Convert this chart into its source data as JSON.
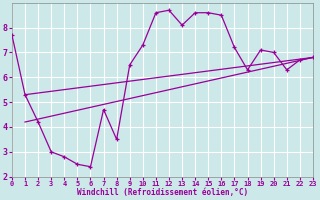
{
  "xlabel": "Windchill (Refroidissement éolien,°C)",
  "bg_color": "#cce8e8",
  "line_color": "#990099",
  "grid_color": "#ffffff",
  "xmin": 0,
  "xmax": 23,
  "ymin": 2,
  "ymax": 9,
  "curve1_x": [
    0,
    1,
    2,
    3,
    4,
    5,
    6,
    7,
    8,
    9,
    10,
    11,
    12,
    13,
    14,
    15,
    16,
    17,
    18,
    19,
    20,
    21,
    22,
    23
  ],
  "curve1_y": [
    7.7,
    5.3,
    4.2,
    3.0,
    2.8,
    2.5,
    2.4,
    4.7,
    3.5,
    6.5,
    7.3,
    8.6,
    8.7,
    8.1,
    8.6,
    8.6,
    8.5,
    7.2,
    6.3,
    7.1,
    7.0,
    6.3,
    6.7,
    6.8
  ],
  "trend1_x": [
    1,
    23
  ],
  "trend1_y": [
    5.3,
    6.8
  ],
  "trend2_x": [
    1,
    23
  ],
  "trend2_y": [
    4.2,
    6.8
  ],
  "yticks": [
    2,
    3,
    4,
    5,
    6,
    7,
    8
  ],
  "xticks": [
    0,
    1,
    2,
    3,
    4,
    5,
    6,
    7,
    8,
    9,
    10,
    11,
    12,
    13,
    14,
    15,
    16,
    17,
    18,
    19,
    20,
    21,
    22,
    23
  ]
}
